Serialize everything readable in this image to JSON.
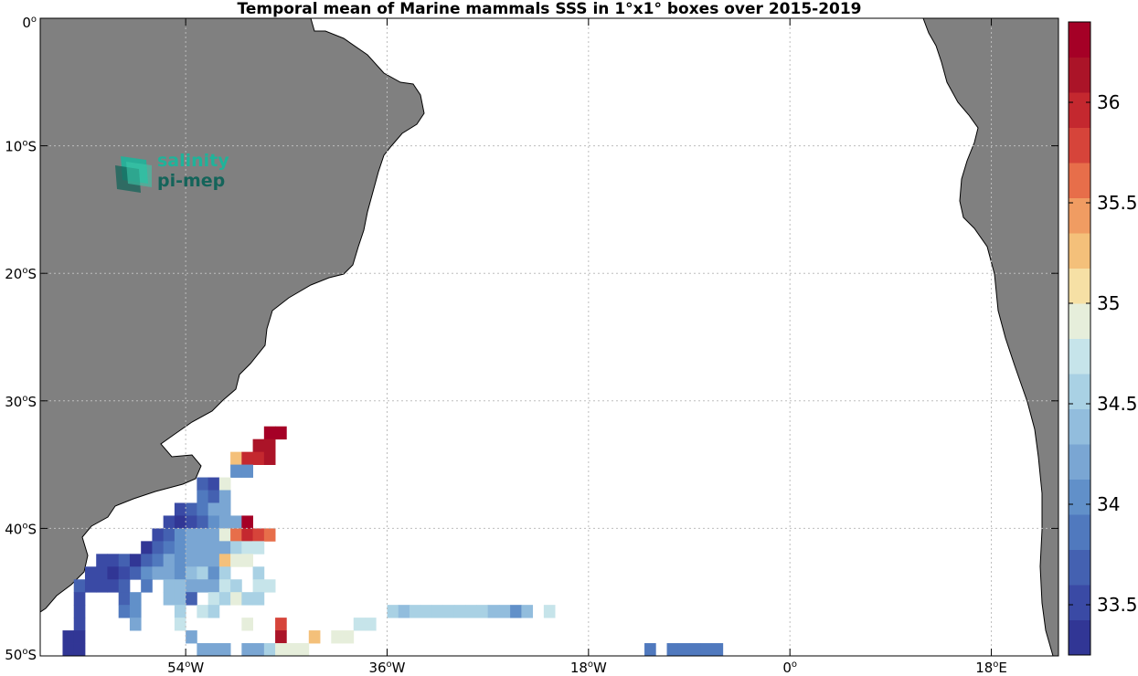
{
  "title": "Temporal mean of Marine mammals SSS in 1°x1° boxes over 2015-2019",
  "logo": {
    "line1": "salinity",
    "line2": "pi-mep",
    "color1": "#1fb39a",
    "color2": "#14645a"
  },
  "colors": {
    "land": "#808080",
    "ocean": "#ffffff",
    "grid": "#bdbdbd"
  },
  "chart_data": {
    "type": "heatmap",
    "lon_range": [
      -67,
      24
    ],
    "lat_range": [
      -50,
      0
    ],
    "x_ticks": [
      {
        "value": -54,
        "deg": "54",
        "hemi": "W"
      },
      {
        "value": -36,
        "deg": "36",
        "hemi": "W"
      },
      {
        "value": -18,
        "deg": "18",
        "hemi": "W"
      },
      {
        "value": 0,
        "deg": "0",
        "hemi": ""
      },
      {
        "value": 18,
        "deg": "18",
        "hemi": "E"
      }
    ],
    "y_ticks": [
      {
        "value": 0,
        "deg": "0",
        "hemi": ""
      },
      {
        "value": -10,
        "deg": "10",
        "hemi": "S"
      },
      {
        "value": -20,
        "deg": "20",
        "hemi": "S"
      },
      {
        "value": -30,
        "deg": "30",
        "hemi": "S"
      },
      {
        "value": -40,
        "deg": "40",
        "hemi": "S"
      },
      {
        "value": -50,
        "deg": "50",
        "hemi": "S"
      }
    ],
    "colorbar": {
      "min": 33.25,
      "max": 36.4,
      "ticks": [
        "33.5",
        "34",
        "34.5",
        "35",
        "35.5",
        "36"
      ],
      "levels": [
        "#313695",
        "#3a4aa5",
        "#4461b1",
        "#5079be",
        "#6190c9",
        "#7aa6d3",
        "#92bddd",
        "#a9d1e4",
        "#c6e4ea",
        "#e6eedb",
        "#f6e0a5",
        "#f4c07a",
        "#f09c62",
        "#e76e4a",
        "#d6443a",
        "#c4282f",
        "#ab1428",
        "#a50026"
      ]
    },
    "cells_lon_lat_sss": [
      [
        -46.5,
        -32.5,
        36.3
      ],
      [
        -45.5,
        -32.5,
        36.3
      ],
      [
        -47.5,
        -33.5,
        36.2
      ],
      [
        -46.5,
        -33.5,
        36.2
      ],
      [
        -49.5,
        -34.5,
        35.2
      ],
      [
        -48.5,
        -34.5,
        36.0
      ],
      [
        -47.5,
        -34.5,
        36.0
      ],
      [
        -46.5,
        -34.5,
        36.2
      ],
      [
        -49.5,
        -35.5,
        34.0
      ],
      [
        -48.5,
        -35.5,
        34.0
      ],
      [
        -52.5,
        -36.5,
        33.6
      ],
      [
        -51.5,
        -36.5,
        33.5
      ],
      [
        -50.5,
        -36.5,
        34.9
      ],
      [
        -52.5,
        -37.5,
        33.9
      ],
      [
        -51.5,
        -37.5,
        33.7
      ],
      [
        -50.5,
        -37.5,
        34.2
      ],
      [
        -54.5,
        -38.5,
        33.5
      ],
      [
        -53.5,
        -38.5,
        33.6
      ],
      [
        -52.5,
        -38.5,
        33.9
      ],
      [
        -51.5,
        -38.5,
        34.2
      ],
      [
        -50.5,
        -38.5,
        34.3
      ],
      [
        -55.5,
        -39.5,
        33.5
      ],
      [
        -54.5,
        -39.5,
        33.4
      ],
      [
        -53.5,
        -39.5,
        33.5
      ],
      [
        -52.5,
        -39.5,
        33.6
      ],
      [
        -51.5,
        -39.5,
        34.0
      ],
      [
        -50.5,
        -39.5,
        34.2
      ],
      [
        -49.5,
        -39.5,
        34.2
      ],
      [
        -48.5,
        -39.5,
        36.3
      ],
      [
        -56.5,
        -40.5,
        33.5
      ],
      [
        -55.5,
        -40.5,
        33.6
      ],
      [
        -54.5,
        -40.5,
        34.0
      ],
      [
        -53.5,
        -40.5,
        34.2
      ],
      [
        -52.5,
        -40.5,
        34.2
      ],
      [
        -51.5,
        -40.5,
        34.3
      ],
      [
        -50.5,
        -40.5,
        34.9
      ],
      [
        -49.5,
        -40.5,
        35.6
      ],
      [
        -48.5,
        -40.5,
        36.0
      ],
      [
        -47.5,
        -40.5,
        35.8
      ],
      [
        -46.5,
        -40.5,
        35.6
      ],
      [
        -57.5,
        -41.5,
        33.4
      ],
      [
        -56.5,
        -41.5,
        33.6
      ],
      [
        -55.5,
        -41.5,
        33.8
      ],
      [
        -54.5,
        -41.5,
        34.0
      ],
      [
        -53.5,
        -41.5,
        34.2
      ],
      [
        -52.5,
        -41.5,
        34.3
      ],
      [
        -51.5,
        -41.5,
        34.2
      ],
      [
        -50.5,
        -41.5,
        34.3
      ],
      [
        -49.5,
        -41.5,
        34.5
      ],
      [
        -48.5,
        -41.5,
        34.7
      ],
      [
        -47.5,
        -41.5,
        34.7
      ],
      [
        -61.5,
        -42.5,
        33.5
      ],
      [
        -60.5,
        -42.5,
        33.5
      ],
      [
        -59.5,
        -42.5,
        33.6
      ],
      [
        -58.5,
        -42.5,
        33.4
      ],
      [
        -57.5,
        -42.5,
        33.7
      ],
      [
        -56.5,
        -42.5,
        33.9
      ],
      [
        -55.5,
        -42.5,
        34.2
      ],
      [
        -54.5,
        -42.5,
        34.1
      ],
      [
        -53.5,
        -42.5,
        34.3
      ],
      [
        -52.5,
        -42.5,
        34.2
      ],
      [
        -51.5,
        -42.5,
        34.3
      ],
      [
        -50.5,
        -42.5,
        35.2
      ],
      [
        -49.5,
        -42.5,
        34.9
      ],
      [
        -48.5,
        -42.5,
        34.9
      ],
      [
        -62.5,
        -43.5,
        33.5
      ],
      [
        -61.5,
        -43.5,
        33.5
      ],
      [
        -60.5,
        -43.5,
        33.4
      ],
      [
        -59.5,
        -43.5,
        33.5
      ],
      [
        -58.5,
        -43.5,
        33.6
      ],
      [
        -57.5,
        -43.5,
        34.0
      ],
      [
        -56.5,
        -43.5,
        34.2
      ],
      [
        -55.5,
        -43.5,
        34.3
      ],
      [
        -54.5,
        -43.5,
        34.1
      ],
      [
        -53.5,
        -43.5,
        34.4
      ],
      [
        -52.5,
        -43.5,
        34.6
      ],
      [
        -51.5,
        -43.5,
        34.1
      ],
      [
        -50.5,
        -43.5,
        34.6
      ],
      [
        -47.5,
        -43.5,
        34.5
      ],
      [
        -63.5,
        -44.5,
        33.6
      ],
      [
        -62.5,
        -44.5,
        33.5
      ],
      [
        -61.5,
        -44.5,
        33.5
      ],
      [
        -60.5,
        -44.5,
        33.5
      ],
      [
        -59.5,
        -44.5,
        33.6
      ],
      [
        -57.5,
        -44.5,
        33.8
      ],
      [
        -55.5,
        -44.5,
        34.4
      ],
      [
        -54.5,
        -44.5,
        34.4
      ],
      [
        -53.5,
        -44.5,
        34.3
      ],
      [
        -52.5,
        -44.5,
        34.3
      ],
      [
        -51.5,
        -44.5,
        34.2
      ],
      [
        -50.5,
        -44.5,
        34.8
      ],
      [
        -49.5,
        -44.5,
        34.6
      ],
      [
        -47.5,
        -44.5,
        34.7
      ],
      [
        -46.5,
        -44.5,
        34.8
      ],
      [
        -63.5,
        -45.5,
        33.5
      ],
      [
        -59.5,
        -45.5,
        33.6
      ],
      [
        -58.5,
        -45.5,
        34.0
      ],
      [
        -55.5,
        -45.5,
        34.4
      ],
      [
        -54.5,
        -45.5,
        34.4
      ],
      [
        -53.5,
        -45.5,
        33.6
      ],
      [
        -51.5,
        -45.5,
        34.7
      ],
      [
        -50.5,
        -45.5,
        34.6
      ],
      [
        -49.5,
        -45.5,
        34.9
      ],
      [
        -48.5,
        -45.5,
        34.6
      ],
      [
        -47.5,
        -45.5,
        34.6
      ],
      [
        -63.5,
        -46.5,
        33.5
      ],
      [
        -59.5,
        -46.5,
        33.8
      ],
      [
        -58.5,
        -46.5,
        34.1
      ],
      [
        -54.5,
        -46.5,
        34.6
      ],
      [
        -52.5,
        -46.5,
        34.8
      ],
      [
        -51.5,
        -46.5,
        34.6
      ],
      [
        -35.5,
        -46.5,
        34.5
      ],
      [
        -34.5,
        -46.5,
        34.4
      ],
      [
        -33.5,
        -46.5,
        34.6
      ],
      [
        -32.5,
        -46.5,
        34.5
      ],
      [
        -31.5,
        -46.5,
        34.5
      ],
      [
        -30.5,
        -46.5,
        34.5
      ],
      [
        -29.5,
        -46.5,
        34.5
      ],
      [
        -28.5,
        -46.5,
        34.5
      ],
      [
        -27.5,
        -46.5,
        34.5
      ],
      [
        -26.5,
        -46.5,
        34.4
      ],
      [
        -25.5,
        -46.5,
        34.4
      ],
      [
        -24.5,
        -46.5,
        34.1
      ],
      [
        -23.5,
        -46.5,
        34.4
      ],
      [
        -21.5,
        -46.5,
        34.7
      ],
      [
        -63.5,
        -47.5,
        33.5
      ],
      [
        -58.5,
        -47.5,
        34.2
      ],
      [
        -54.5,
        -47.5,
        34.7
      ],
      [
        -48.5,
        -47.5,
        34.9
      ],
      [
        -45.5,
        -47.5,
        35.7
      ],
      [
        -38.5,
        -47.5,
        34.7
      ],
      [
        -37.5,
        -47.5,
        34.7
      ],
      [
        -64.5,
        -48.5,
        33.4
      ],
      [
        -63.5,
        -48.5,
        33.4
      ],
      [
        -53.5,
        -48.5,
        34.2
      ],
      [
        -45.5,
        -48.5,
        36.1
      ],
      [
        -42.5,
        -48.5,
        35.2
      ],
      [
        -40.5,
        -48.5,
        34.9
      ],
      [
        -39.5,
        -48.5,
        34.9
      ],
      [
        -64.5,
        -49.5,
        33.4
      ],
      [
        -63.5,
        -49.5,
        33.4
      ],
      [
        -52.5,
        -49.5,
        34.3
      ],
      [
        -51.5,
        -49.5,
        34.3
      ],
      [
        -50.5,
        -49.5,
        34.3
      ],
      [
        -48.5,
        -49.5,
        34.2
      ],
      [
        -47.5,
        -49.5,
        34.3
      ],
      [
        -46.5,
        -49.5,
        34.6
      ],
      [
        -45.5,
        -49.5,
        34.9
      ],
      [
        -44.5,
        -49.5,
        34.9
      ],
      [
        -43.5,
        -49.5,
        34.9
      ],
      [
        -12.5,
        -49.5,
        33.8
      ],
      [
        -10.5,
        -49.5,
        33.8
      ],
      [
        -9.5,
        -49.5,
        33.8
      ],
      [
        -8.5,
        -49.5,
        33.9
      ],
      [
        -7.5,
        -49.5,
        33.9
      ],
      [
        -6.5,
        -49.5,
        33.8
      ]
    ]
  }
}
